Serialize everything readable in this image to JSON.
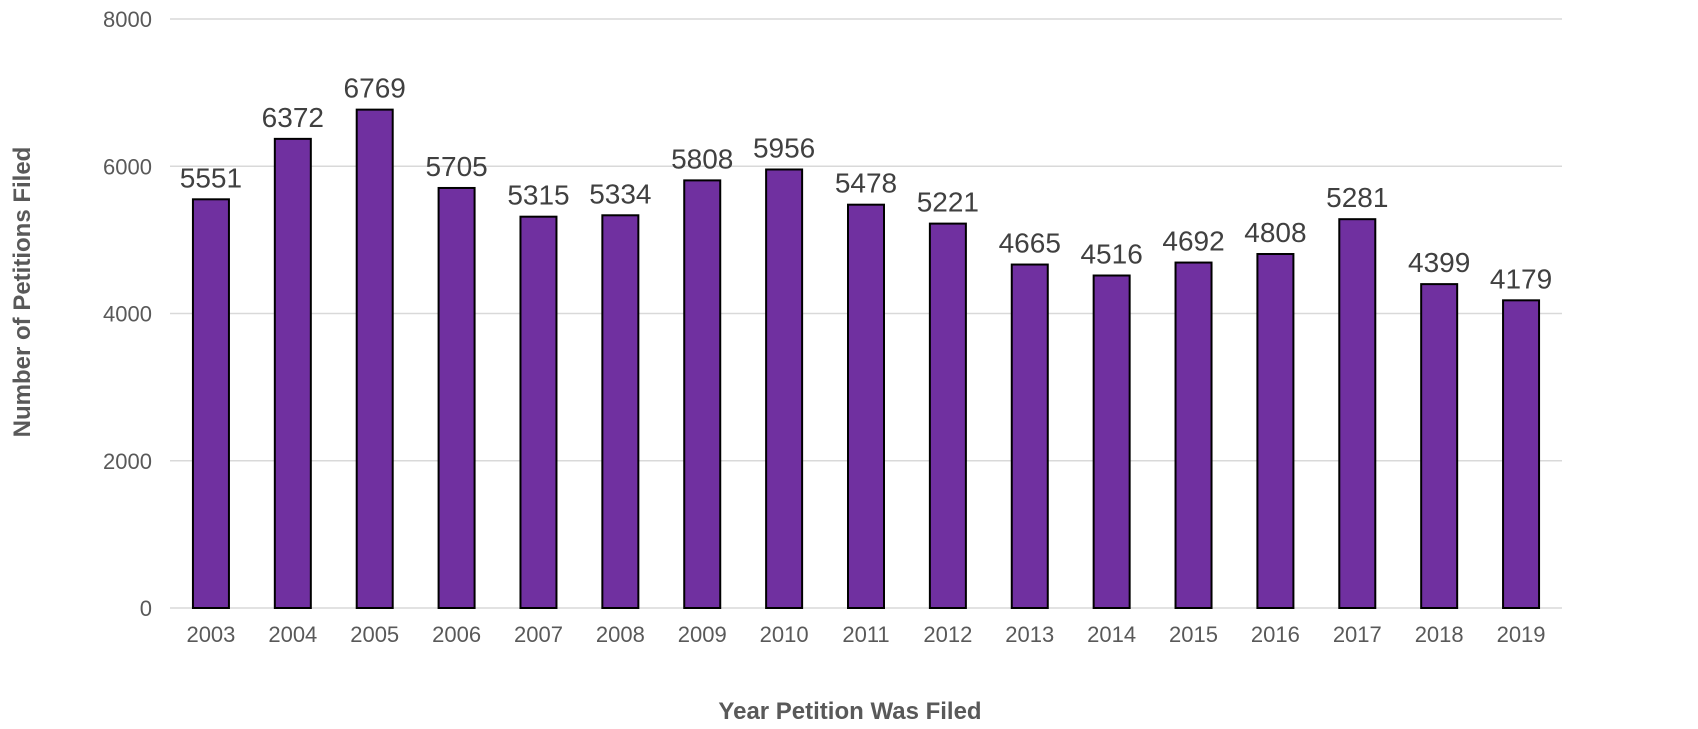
{
  "chart_data": {
    "type": "bar",
    "title": "",
    "xlabel": "Year Petition Was Filed",
    "ylabel": "Number of  Petitions Filed",
    "categories": [
      "2003",
      "2004",
      "2005",
      "2006",
      "2007",
      "2008",
      "2009",
      "2010",
      "2011",
      "2012",
      "2013",
      "2014",
      "2015",
      "2016",
      "2017",
      "2018",
      "2019"
    ],
    "series": [
      {
        "values": [
          5551,
          6372,
          6769,
          5705,
          5315,
          5334,
          5808,
          5956,
          5478,
          5221,
          4665,
          4516,
          4692,
          4808,
          5281,
          4399,
          4179
        ]
      }
    ],
    "ylim": [
      0,
      8000
    ],
    "yticks": [
      0,
      2000,
      4000,
      6000,
      8000
    ],
    "grid": true,
    "legend": "none",
    "data_labels": true,
    "bar_color": "#7030a0",
    "bar_border_color": "#000000",
    "gridline_color": "#d9d9d9"
  }
}
